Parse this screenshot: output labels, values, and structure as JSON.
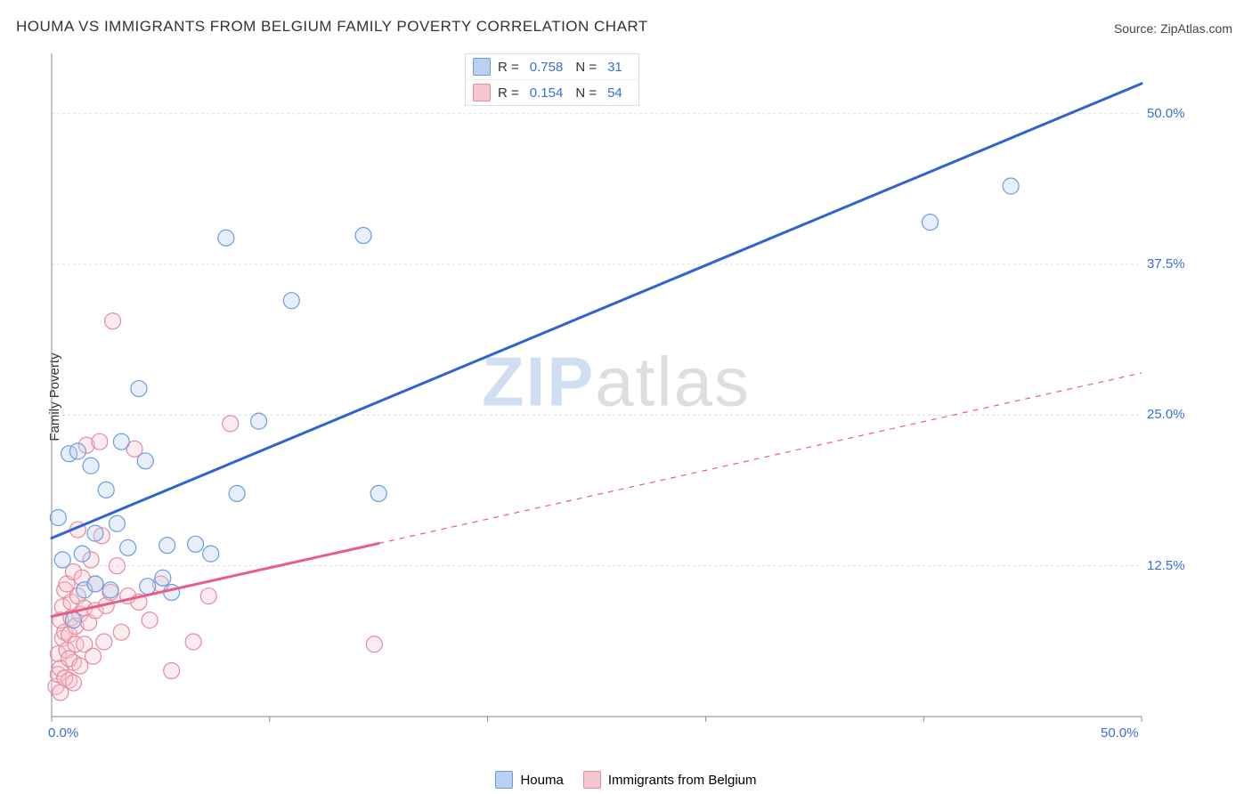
{
  "title": "HOUMA VS IMMIGRANTS FROM BELGIUM FAMILY POVERTY CORRELATION CHART",
  "source": "Source: ZipAtlas.com",
  "ylabel": "Family Poverty",
  "watermark": {
    "zip": "ZIP",
    "atlas": "atlas"
  },
  "chart": {
    "type": "scatter",
    "xlim": [
      0,
      50
    ],
    "ylim": [
      0,
      55
    ],
    "xticks": [
      0,
      10,
      20,
      30,
      40,
      50
    ],
    "xtick_labels": [
      "0.0%",
      "",
      "",
      "",
      "",
      "50.0%"
    ],
    "yticks": [
      12.5,
      25.0,
      37.5,
      50.0
    ],
    "ytick_labels": [
      "12.5%",
      "25.0%",
      "37.5%",
      "50.0%"
    ],
    "grid_color": "#dddddd",
    "grid_dash": "3,3",
    "axis_color": "#888888",
    "background_color": "#ffffff",
    "tick_label_color": "#3b6fd6",
    "tick_label_fontsize": 15,
    "marker_radius": 9,
    "marker_fill_opacity": 0.35,
    "marker_stroke_width": 1.2,
    "line_width_trend": 3,
    "line_width_trend_dash": 1.2
  },
  "series": [
    {
      "name": "Houma",
      "swatch_label": "Houma",
      "color_fill": "#b9d0f0",
      "color_stroke": "#6a9de0",
      "trend_color": "#2f63d0",
      "R": "0.758",
      "N": "31",
      "trend": {
        "x1": 0,
        "y1": 14.8,
        "x2": 50,
        "y2": 52.5,
        "solid_until_x": 50
      },
      "points": [
        [
          0.3,
          16.5
        ],
        [
          0.5,
          13.0
        ],
        [
          0.8,
          21.8
        ],
        [
          1.0,
          8.0
        ],
        [
          1.2,
          22.0
        ],
        [
          1.4,
          13.5
        ],
        [
          1.5,
          10.5
        ],
        [
          1.8,
          20.8
        ],
        [
          2.0,
          15.2
        ],
        [
          2.5,
          18.8
        ],
        [
          2.7,
          10.5
        ],
        [
          3.2,
          22.8
        ],
        [
          3.5,
          14.0
        ],
        [
          4.0,
          27.2
        ],
        [
          4.3,
          21.2
        ],
        [
          4.4,
          10.8
        ],
        [
          5.1,
          11.5
        ],
        [
          5.3,
          14.2
        ],
        [
          5.5,
          10.3
        ],
        [
          6.6,
          14.3
        ],
        [
          7.3,
          13.5
        ],
        [
          8.0,
          39.7
        ],
        [
          8.5,
          18.5
        ],
        [
          9.5,
          24.5
        ],
        [
          11.0,
          34.5
        ],
        [
          14.3,
          39.9
        ],
        [
          15.0,
          18.5
        ],
        [
          40.3,
          41.0
        ],
        [
          44.0,
          44.0
        ],
        [
          2.0,
          11.0
        ],
        [
          3.0,
          16.0
        ]
      ]
    },
    {
      "name": "Immigrants from Belgium",
      "swatch_label": "Immigrants from Belgium",
      "color_fill": "#f6c6d1",
      "color_stroke": "#e68aa0",
      "trend_color": "#e85d85",
      "R": "0.154",
      "N": "54",
      "trend": {
        "x1": 0,
        "y1": 8.3,
        "x2": 50,
        "y2": 28.5,
        "solid_until_x": 15
      },
      "points": [
        [
          0.2,
          2.5
        ],
        [
          0.3,
          3.5
        ],
        [
          0.3,
          5.2
        ],
        [
          0.4,
          8.0
        ],
        [
          0.4,
          4.0
        ],
        [
          0.5,
          6.5
        ],
        [
          0.5,
          9.1
        ],
        [
          0.6,
          7.0
        ],
        [
          0.6,
          10.5
        ],
        [
          0.7,
          5.5
        ],
        [
          0.7,
          11.0
        ],
        [
          0.8,
          3.0
        ],
        [
          0.8,
          6.8
        ],
        [
          0.9,
          9.5
        ],
        [
          0.9,
          8.2
        ],
        [
          1.0,
          12.0
        ],
        [
          1.0,
          4.5
        ],
        [
          1.1,
          7.5
        ],
        [
          1.1,
          6.0
        ],
        [
          1.2,
          10.0
        ],
        [
          1.2,
          15.5
        ],
        [
          1.3,
          8.5
        ],
        [
          1.4,
          11.5
        ],
        [
          1.5,
          6.0
        ],
        [
          1.5,
          9.0
        ],
        [
          1.6,
          22.5
        ],
        [
          1.7,
          7.8
        ],
        [
          1.8,
          13.0
        ],
        [
          1.9,
          5.0
        ],
        [
          2.0,
          8.8
        ],
        [
          2.0,
          11.0
        ],
        [
          2.2,
          22.8
        ],
        [
          2.3,
          15.0
        ],
        [
          2.4,
          6.2
        ],
        [
          2.5,
          9.2
        ],
        [
          2.7,
          10.3
        ],
        [
          2.8,
          32.8
        ],
        [
          3.0,
          12.5
        ],
        [
          3.2,
          7.0
        ],
        [
          3.5,
          10.0
        ],
        [
          3.8,
          22.2
        ],
        [
          4.0,
          9.5
        ],
        [
          4.5,
          8.0
        ],
        [
          5.0,
          11.0
        ],
        [
          5.5,
          3.8
        ],
        [
          6.5,
          6.2
        ],
        [
          7.2,
          10.0
        ],
        [
          8.2,
          24.3
        ],
        [
          14.8,
          6.0
        ],
        [
          0.4,
          2.0
        ],
        [
          0.6,
          3.2
        ],
        [
          0.8,
          4.8
        ],
        [
          1.0,
          2.8
        ],
        [
          1.3,
          4.2
        ]
      ]
    }
  ],
  "legend_top": {
    "R_label": "R =",
    "N_label": "N ="
  }
}
